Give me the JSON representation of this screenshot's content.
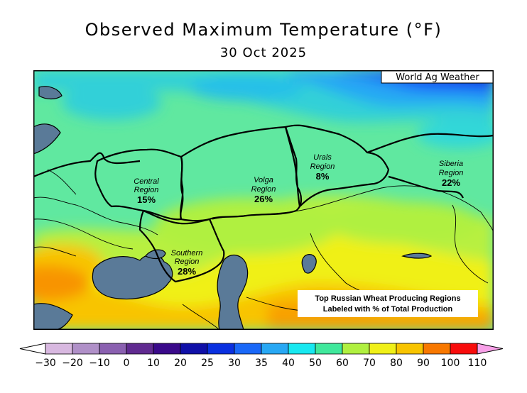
{
  "header": {
    "title": "Observed Maximum Temperature (°F)",
    "date": "30 Oct 2025"
  },
  "map": {
    "watermark": "World Ag Weather",
    "regions": [
      {
        "id": "central",
        "name": "Central",
        "suffix": "Region",
        "share": "15%"
      },
      {
        "id": "volga",
        "name": "Volga",
        "suffix": "Region",
        "share": "26%"
      },
      {
        "id": "urals",
        "name": "Urals",
        "suffix": "Region",
        "share": "8%"
      },
      {
        "id": "siberia",
        "name": "Siberia",
        "suffix": "Region",
        "share": "22%"
      },
      {
        "id": "southern",
        "name": "Southern",
        "suffix": "Region",
        "share": "28%"
      }
    ],
    "note": {
      "line1": "Top Russian Wheat Producing Regions",
      "line2": "Labeled with % of Total Production"
    }
  },
  "legend": {
    "bins": [
      {
        "label": "−30",
        "color": "#d8b8e0"
      },
      {
        "label": "−20",
        "color": "#b090c8"
      },
      {
        "label": "−10",
        "color": "#8a60b0"
      },
      {
        "label": "0",
        "color": "#602a90"
      },
      {
        "label": "10",
        "color": "#3a0a8a"
      },
      {
        "label": "20",
        "color": "#1010a8"
      },
      {
        "label": "25",
        "color": "#0a30e0"
      },
      {
        "label": "30",
        "color": "#1a68f8"
      },
      {
        "label": "35",
        "color": "#28a8f4"
      },
      {
        "label": "40",
        "color": "#18e8f0"
      },
      {
        "label": "50",
        "color": "#40e89c"
      },
      {
        "label": "60",
        "color": "#b0f040"
      },
      {
        "label": "70",
        "color": "#f0f018"
      },
      {
        "label": "80",
        "color": "#f8c400"
      },
      {
        "label": "90",
        "color": "#f87800"
      },
      {
        "label": "100",
        "color": "#f80c0c"
      },
      {
        "label": "110",
        "color": "#f818b0"
      }
    ],
    "under_color": "#ffffff",
    "over_color": "#f8a0e8"
  }
}
